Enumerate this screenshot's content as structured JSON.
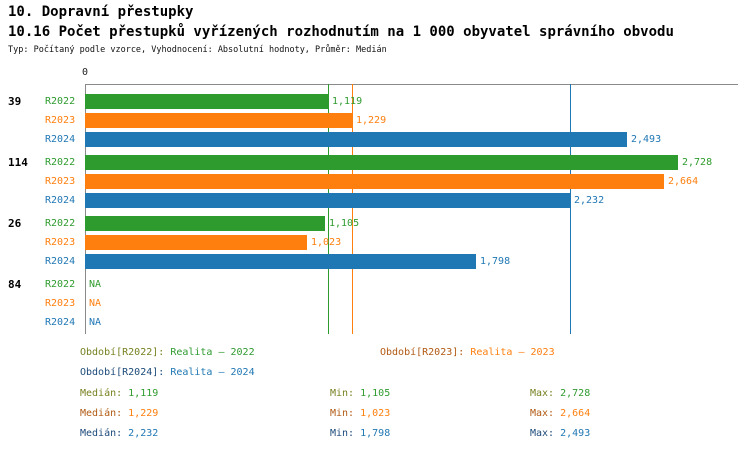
{
  "header": {
    "title": "10. Dopravní přestupky",
    "subtitle": "10.16 Počet přestupků vyřízených rozhodnutím na 1 000 obyvatel správního obvodu",
    "type_line": "Typ: Počítaný podle vzorce, Vyhodnocení: Absolutní hodnoty, Průměr: Medián"
  },
  "chart_data": {
    "type": "bar",
    "orientation": "horizontal",
    "origin_label": "0",
    "xlim": [
      0,
      3000
    ],
    "grid": "median-lines-only",
    "series": [
      {
        "id": "R2022",
        "label": "R2022",
        "color": "#2e9b2e",
        "dark_color": "#77801f"
      },
      {
        "id": "R2023",
        "label": "R2023",
        "color": "#ff7f0e",
        "dark_color": "#b25912"
      },
      {
        "id": "R2024",
        "label": "R2024",
        "color": "#1f77b4",
        "dark_color": "#1c4a7a"
      }
    ],
    "groups": [
      {
        "label": "39",
        "values": [
          {
            "series": "R2022",
            "value": 1119,
            "display": "1,119"
          },
          {
            "series": "R2023",
            "value": 1229,
            "display": "1,229"
          },
          {
            "series": "R2024",
            "value": 2493,
            "display": "2,493"
          }
        ]
      },
      {
        "label": "114",
        "values": [
          {
            "series": "R2022",
            "value": 2728,
            "display": "2,728"
          },
          {
            "series": "R2023",
            "value": 2664,
            "display": "2,664"
          },
          {
            "series": "R2024",
            "value": 2232,
            "display": "2,232"
          }
        ]
      },
      {
        "label": "26",
        "values": [
          {
            "series": "R2022",
            "value": 1105,
            "display": "1,105"
          },
          {
            "series": "R2023",
            "value": 1023,
            "display": "1,023"
          },
          {
            "series": "R2024",
            "value": 1798,
            "display": "1,798"
          }
        ]
      },
      {
        "label": "84",
        "values": [
          {
            "series": "R2022",
            "value": null,
            "display": "NA"
          },
          {
            "series": "R2023",
            "value": null,
            "display": "NA"
          },
          {
            "series": "R2024",
            "value": null,
            "display": "NA"
          }
        ]
      }
    ],
    "median_lines": [
      {
        "series": "R2022",
        "value": 1119
      },
      {
        "series": "R2023",
        "value": 1229
      },
      {
        "series": "R2024",
        "value": 2232
      }
    ]
  },
  "legend": [
    {
      "series": "R2022",
      "prefix": "Období[R2022]:",
      "value": "Realita – 2022",
      "column": 0,
      "row": 0
    },
    {
      "series": "R2023",
      "prefix": "Období[R2023]:",
      "value": "Realita – 2023",
      "column": 1,
      "row": 0
    },
    {
      "series": "R2024",
      "prefix": "Období[R2024]:",
      "value": "Realita – 2024",
      "column": 0,
      "row": 1
    }
  ],
  "stats": [
    {
      "series": "R2022",
      "median": {
        "label": "Medián:",
        "value": "1,119"
      },
      "min": {
        "label": "Min:",
        "value": "1,105"
      },
      "max": {
        "label": "Max:",
        "value": "2,728"
      }
    },
    {
      "series": "R2023",
      "median": {
        "label": "Medián:",
        "value": "1,229"
      },
      "min": {
        "label": "Min:",
        "value": "1,023"
      },
      "max": {
        "label": "Max:",
        "value": "2,664"
      }
    },
    {
      "series": "R2024",
      "median": {
        "label": "Medián:",
        "value": "2,232"
      },
      "min": {
        "label": "Min:",
        "value": "1,798"
      },
      "max": {
        "label": "Max:",
        "value": "2,493"
      }
    }
  ]
}
